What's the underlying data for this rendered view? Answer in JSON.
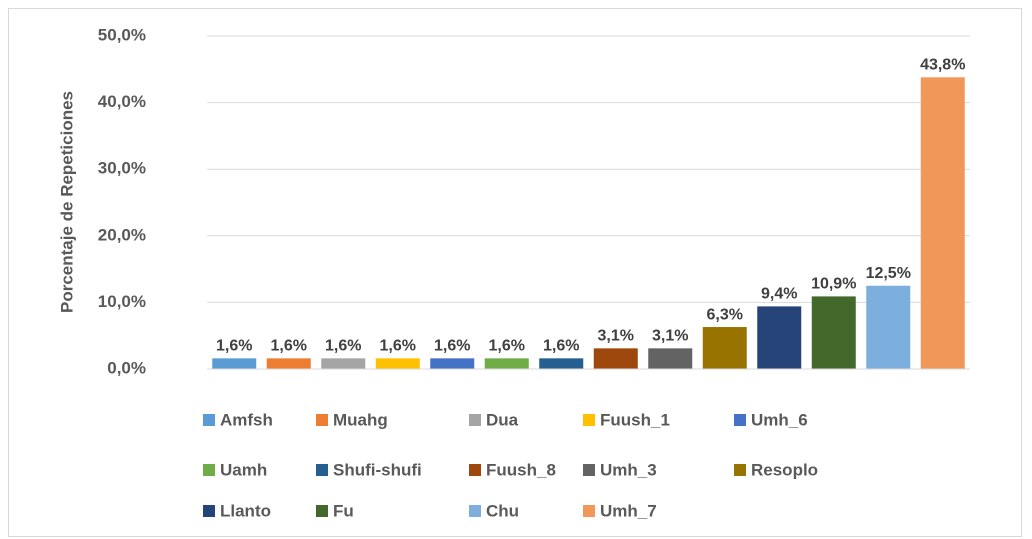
{
  "chart_data": {
    "type": "bar",
    "y_label": "Porcentaje de Repeticiones",
    "ylim": [
      0,
      50
    ],
    "yticks": [
      {
        "value": 0,
        "label": "0,0%"
      },
      {
        "value": 10,
        "label": "10,0%"
      },
      {
        "value": 20,
        "label": "20,0%"
      },
      {
        "value": 30,
        "label": "30,0%"
      },
      {
        "value": 40,
        "label": "40,0%"
      },
      {
        "value": 50,
        "label": "50,0%"
      }
    ],
    "grid": true,
    "legend": "bottom",
    "series": [
      {
        "name": "Amfsh",
        "color": "#5b9bd5",
        "values": [
          1.6
        ],
        "value_labels": [
          "1,6%"
        ]
      },
      {
        "name": "Muahg",
        "color": "#ed7d31",
        "values": [
          1.6
        ],
        "value_labels": [
          "1,6%"
        ]
      },
      {
        "name": "Dua",
        "color": "#a5a5a5",
        "values": [
          1.6
        ],
        "value_labels": [
          "1,6%"
        ]
      },
      {
        "name": "Fuush_1",
        "color": "#ffc000",
        "values": [
          1.6
        ],
        "value_labels": [
          "1,6%"
        ]
      },
      {
        "name": "Umh_6",
        "color": "#4472c4",
        "values": [
          1.6
        ],
        "value_labels": [
          "1,6%"
        ]
      },
      {
        "name": "Uamh",
        "color": "#70ad47",
        "values": [
          1.6
        ],
        "value_labels": [
          "1,6%"
        ]
      },
      {
        "name": "Shufi-shufi",
        "color": "#255e91",
        "values": [
          1.6
        ],
        "value_labels": [
          "1,6%"
        ]
      },
      {
        "name": "Fuush_8",
        "color": "#9e480e",
        "values": [
          3.1
        ],
        "value_labels": [
          "3,1%"
        ]
      },
      {
        "name": "Umh_3",
        "color": "#636363",
        "values": [
          3.1
        ],
        "value_labels": [
          "3,1%"
        ]
      },
      {
        "name": "Resoplo",
        "color": "#997300",
        "values": [
          6.3
        ],
        "value_labels": [
          "6,3%"
        ]
      },
      {
        "name": "Llanto",
        "color": "#264478",
        "values": [
          9.4
        ],
        "value_labels": [
          "9,4%"
        ]
      },
      {
        "name": "Fu",
        "color": "#43682b",
        "values": [
          10.9
        ],
        "value_labels": [
          "10,9%"
        ]
      },
      {
        "name": "Chu",
        "color": "#7cafdd",
        "values": [
          12.5
        ],
        "value_labels": [
          "12,5%"
        ]
      },
      {
        "name": "Umh_7",
        "color": "#f1975a",
        "values": [
          43.8
        ],
        "value_labels": [
          "43,8%"
        ]
      }
    ]
  }
}
